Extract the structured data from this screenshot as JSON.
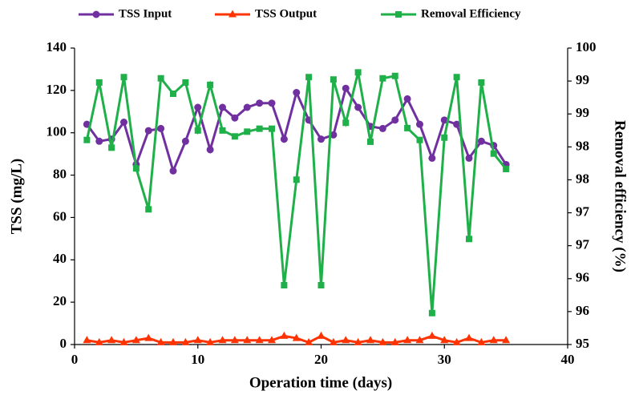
{
  "chart_data": {
    "type": "line",
    "x_label": "Operation time (days)",
    "y_label": "TSS (mg/L)",
    "y2_label": "Removal efficiency (%)",
    "x": [
      1,
      2,
      3,
      4,
      5,
      6,
      7,
      8,
      9,
      10,
      11,
      12,
      13,
      14,
      15,
      16,
      17,
      18,
      19,
      20,
      21,
      22,
      23,
      24,
      25,
      26,
      27,
      28,
      29,
      30,
      31,
      32,
      33,
      34,
      35
    ],
    "series": [
      {
        "name": "TSS Input",
        "color": "#7030a0",
        "marker": "circle",
        "values": [
          104,
          96,
          97,
          105,
          85,
          101,
          102,
          82,
          96,
          112,
          92,
          112,
          107,
          112,
          114,
          114,
          97,
          119,
          106,
          97,
          99,
          121,
          112,
          103,
          102,
          106,
          116,
          104,
          88,
          106,
          104,
          88,
          96,
          94,
          85
        ]
      },
      {
        "name": "TSS Output",
        "color": "#ff3300",
        "marker": "triangle",
        "values": [
          2,
          1,
          2,
          1,
          2,
          3,
          1,
          1,
          1,
          2,
          1,
          2,
          2,
          2,
          2,
          2,
          4,
          3,
          1,
          4,
          1,
          2,
          1,
          2,
          1,
          1,
          2,
          2,
          4,
          2,
          1,
          3,
          1,
          2,
          2
        ]
      },
      {
        "name": "Removal Efficiency",
        "color": "#1fb04a",
        "marker": "square",
        "axis": "y2",
        "values": [
          98.45,
          99.42,
          98.32,
          99.51,
          97.97,
          97.28,
          99.49,
          99.23,
          99.42,
          98.61,
          99.38,
          98.61,
          98.51,
          98.59,
          98.64,
          98.64,
          96.0,
          97.78,
          99.51,
          96.0,
          99.47,
          98.74,
          99.59,
          98.42,
          99.49,
          99.53,
          98.65,
          98.45,
          95.53,
          98.49,
          99.51,
          96.78,
          99.42,
          98.22,
          97.96
        ]
      }
    ],
    "xlim": [
      0,
      40
    ],
    "xticks": [
      0,
      10,
      20,
      30,
      40
    ],
    "ylim": [
      0,
      140
    ],
    "yticks": [
      0,
      20,
      40,
      60,
      80,
      100,
      120,
      140
    ],
    "y2lim": [
      95,
      100
    ],
    "y2ticks": [
      95,
      {
        "value": 95.556,
        "label": "96"
      },
      {
        "value": 96.111,
        "label": "96"
      },
      {
        "value": 96.667,
        "label": "97"
      },
      {
        "value": 97.222,
        "label": "97"
      },
      {
        "value": 97.778,
        "label": "98"
      },
      {
        "value": 98.333,
        "label": "98"
      },
      {
        "value": 98.889,
        "label": "99"
      },
      {
        "value": 99.444,
        "label": "99"
      },
      100
    ],
    "grid": false,
    "legend": "top"
  }
}
